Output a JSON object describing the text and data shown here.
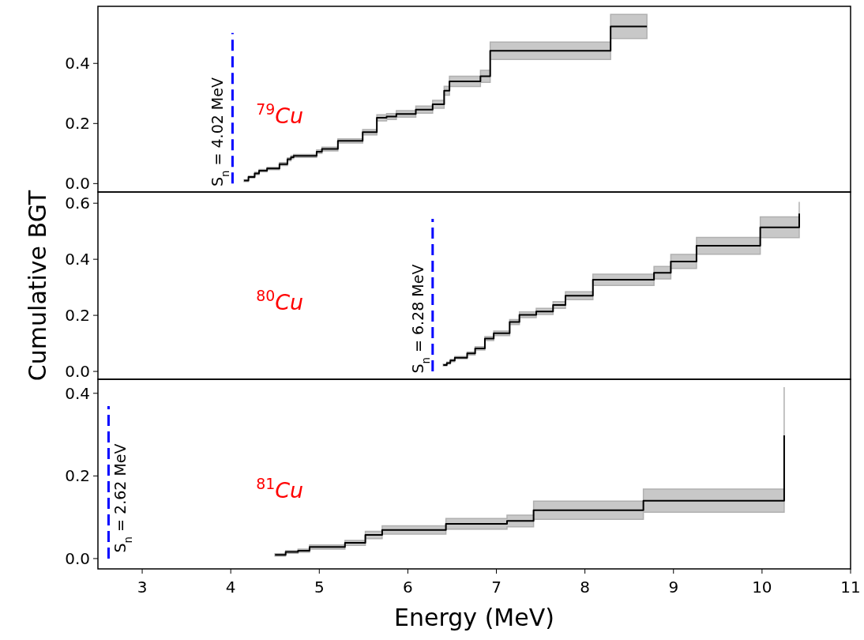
{
  "chart_data": [
    {
      "type": "step",
      "xlim": [
        2.5,
        11
      ],
      "ylim": [
        -0.028,
        0.59
      ],
      "yticks": [
        {
          "value": 0,
          "label": "0.0"
        },
        {
          "value": 0.2,
          "label": "0.2"
        },
        {
          "value": 0.4,
          "label": "0.4"
        }
      ],
      "tick_labels": "y",
      "annotations": [
        "$^{79}$Cu"
      ],
      "ref_lines": [
        {
          "axis": "x",
          "value": 4.02,
          "label": "S$_{n}$ = 4.02 MeV",
          "color": "#0000ff",
          "line_style": "dashed"
        }
      ],
      "series": [
        {
          "color": "#000000",
          "x": [
            4.15,
            4.2,
            4.27,
            4.32,
            4.41,
            4.55,
            4.64,
            4.68,
            4.71,
            4.97,
            5.03,
            5.21,
            5.49,
            5.65,
            5.76,
            5.87,
            6.09,
            6.28,
            6.41,
            6.47,
            6.82,
            6.93,
            8.29,
            8.7
          ],
          "values": [
            0.01,
            0.022,
            0.034,
            0.043,
            0.05,
            0.065,
            0.081,
            0.088,
            0.092,
            0.106,
            0.115,
            0.142,
            0.171,
            0.219,
            0.223,
            0.232,
            0.246,
            0.264,
            0.309,
            0.34,
            0.357,
            0.442,
            0.523,
            0.523
          ],
          "lower": [
            0.007,
            0.019,
            0.03,
            0.039,
            0.046,
            0.06,
            0.076,
            0.083,
            0.087,
            0.1,
            0.109,
            0.135,
            0.162,
            0.209,
            0.213,
            0.221,
            0.234,
            0.251,
            0.294,
            0.323,
            0.337,
            0.413,
            0.483,
            0.483
          ],
          "upper": [
            0.013,
            0.025,
            0.038,
            0.047,
            0.054,
            0.07,
            0.086,
            0.093,
            0.097,
            0.112,
            0.121,
            0.149,
            0.18,
            0.229,
            0.233,
            0.243,
            0.258,
            0.277,
            0.324,
            0.357,
            0.377,
            0.471,
            0.563,
            0.563
          ]
        }
      ]
    },
    {
      "type": "step",
      "xlim": [
        2.5,
        11
      ],
      "ylim": [
        -0.028,
        0.64
      ],
      "yticks": [
        {
          "value": 0,
          "label": "0.0"
        },
        {
          "value": 0.2,
          "label": "0.2"
        },
        {
          "value": 0.4,
          "label": "0.4"
        },
        {
          "value": 0.6,
          "label": "0.6"
        }
      ],
      "tick_labels": "y",
      "ylabel": "Cumulative BGT",
      "annotations": [
        "$^{80}$Cu"
      ],
      "ref_lines": [
        {
          "axis": "x",
          "value": 6.28,
          "label": "S$_{n}$ = 6.28 MeV",
          "color": "#0000ff",
          "line_style": "dashed"
        }
      ],
      "series": [
        {
          "color": "#000000",
          "x": [
            6.4,
            6.44,
            6.48,
            6.53,
            6.67,
            6.76,
            6.87,
            6.97,
            7.15,
            7.26,
            7.45,
            7.64,
            7.78,
            8.09,
            8.78,
            8.97,
            9.26,
            9.98,
            10.42
          ],
          "values": [
            0.023,
            0.03,
            0.039,
            0.049,
            0.064,
            0.082,
            0.117,
            0.136,
            0.176,
            0.202,
            0.214,
            0.237,
            0.27,
            0.327,
            0.352,
            0.392,
            0.448,
            0.514,
            0.563
          ],
          "lower": [
            0.02,
            0.027,
            0.035,
            0.045,
            0.059,
            0.076,
            0.11,
            0.128,
            0.167,
            0.192,
            0.203,
            0.225,
            0.256,
            0.307,
            0.33,
            0.367,
            0.418,
            0.477,
            0.521
          ],
          "upper": [
            0.026,
            0.033,
            0.043,
            0.053,
            0.069,
            0.088,
            0.124,
            0.144,
            0.185,
            0.212,
            0.225,
            0.249,
            0.284,
            0.347,
            0.374,
            0.417,
            0.478,
            0.551,
            0.605
          ]
        }
      ]
    },
    {
      "type": "step",
      "xlim": [
        2.5,
        11
      ],
      "ylim": [
        -0.025,
        0.434
      ],
      "xticks": [
        3,
        4,
        5,
        6,
        7,
        8,
        9,
        10,
        11
      ],
      "yticks": [
        {
          "value": 0,
          "label": "0.0"
        },
        {
          "value": 0.2,
          "label": "0.2"
        },
        {
          "value": 0.4,
          "label": "0.4"
        }
      ],
      "xlabel": "Energy (MeV)",
      "annotations": [
        "$^{81}$Cu"
      ],
      "ref_lines": [
        {
          "axis": "x",
          "value": 2.62,
          "label": "S$_{n}$ = 2.62 MeV",
          "color": "#0000ff",
          "line_style": "dashed"
        }
      ],
      "series": [
        {
          "color": "#000000",
          "x": [
            4.5,
            4.62,
            4.76,
            4.89,
            5.29,
            5.52,
            5.71,
            6.43,
            7.12,
            7.42,
            8.66,
            10.25
          ],
          "values": [
            0.009,
            0.016,
            0.019,
            0.028,
            0.038,
            0.057,
            0.069,
            0.084,
            0.091,
            0.117,
            0.14,
            0.298
          ],
          "lower": [
            0.006,
            0.013,
            0.015,
            0.023,
            0.032,
            0.048,
            0.059,
            0.071,
            0.077,
            0.095,
            0.112,
            0.2
          ],
          "upper": [
            0.012,
            0.019,
            0.023,
            0.033,
            0.044,
            0.066,
            0.079,
            0.097,
            0.105,
            0.139,
            0.168,
            0.415
          ]
        }
      ]
    }
  ]
}
